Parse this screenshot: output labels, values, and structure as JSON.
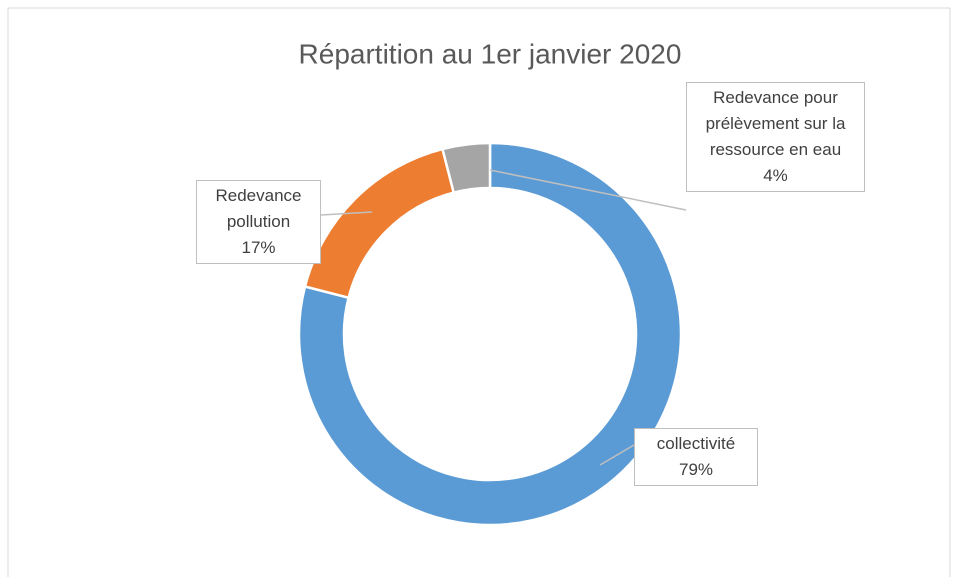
{
  "chart_data": {
    "type": "donut",
    "title": "Répartition au 1er janvier 2020",
    "categories": [
      "collectivité",
      "Redevance pollution",
      "Redevance pour prélèvement sur la ressource en eau"
    ],
    "values": [
      79,
      17,
      4
    ],
    "value_labels": [
      "79%",
      "17%",
      "4%"
    ],
    "colors": [
      "#5b9bd5",
      "#ed7d31",
      "#a5a5a5"
    ]
  }
}
